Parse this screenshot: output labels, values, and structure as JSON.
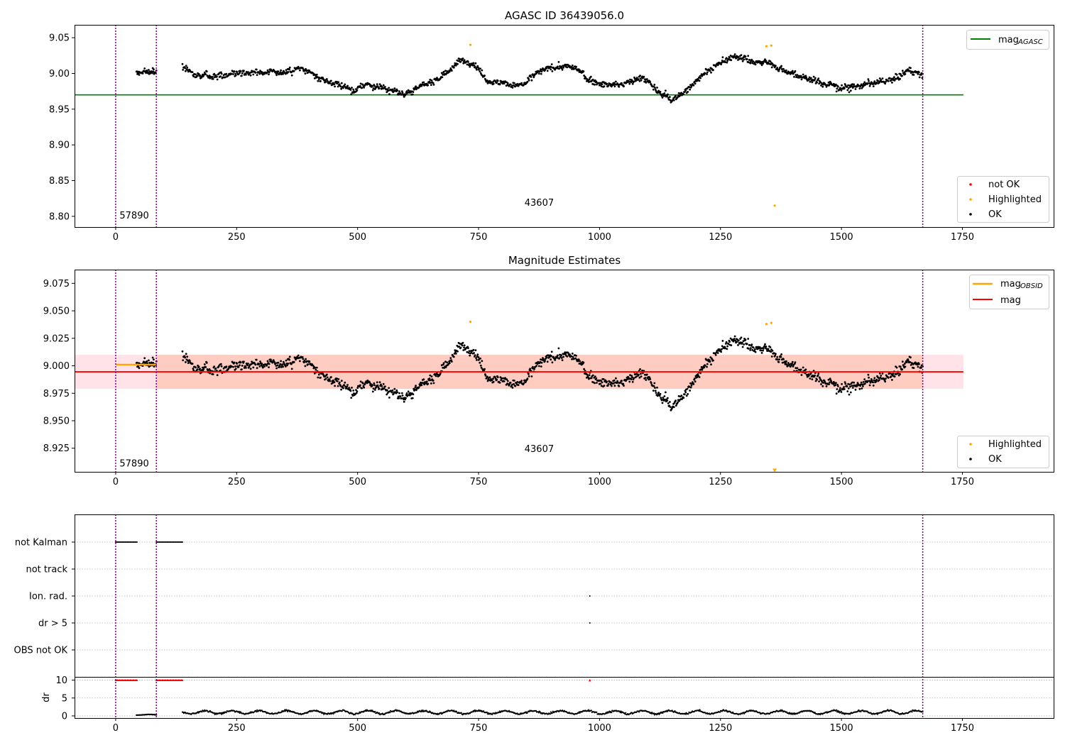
{
  "chart_data": [
    {
      "type": "scatter",
      "title": "AGASC ID 36439056.0",
      "xlim": [
        -85,
        1940
      ],
      "ylim": [
        8.785,
        9.068
      ],
      "x_ticks": [
        0,
        250,
        500,
        750,
        1000,
        1250,
        1500,
        1750
      ],
      "y_ticks": [
        8.8,
        8.85,
        8.9,
        8.95,
        9.0,
        9.05
      ],
      "y_tick_labels": [
        "8.80",
        "8.85",
        "8.90",
        "8.95",
        "9.00",
        "9.05"
      ],
      "obs_boundaries": [
        0,
        84,
        1668
      ],
      "obs_labels": [
        {
          "x": 8,
          "y": 8.797,
          "text": "57890"
        },
        {
          "x": 845,
          "y": 8.815,
          "text": "43607"
        }
      ],
      "reference_line": {
        "name": "mag",
        "subscript": "AGASC",
        "y": 8.97,
        "x": [
          -85,
          1752
        ],
        "color": "#008000"
      },
      "series": [
        {
          "name": "OK",
          "color": "#000000",
          "segments": [
            {
              "x0": 43,
              "x1": 84,
              "n": 45,
              "base": [
                [
                  43,
                  9.001
                ],
                [
                  84,
                  9.003
                ]
              ],
              "noise": 0.006
            },
            {
              "x0": 138,
              "x1": 1668,
              "n": 1400,
              "base": [
                [
                  138,
                  9.013
                ],
                [
                  160,
                  9.0
                ],
                [
                  200,
                  8.995
                ],
                [
                  260,
                  9.002
                ],
                [
                  300,
                  9.003
                ],
                [
                  350,
                  9.002
                ],
                [
                  380,
                  9.008
                ],
                [
                  420,
                  8.992
                ],
                [
                  460,
                  8.985
                ],
                [
                  490,
                  8.975
                ],
                [
                  520,
                  8.985
                ],
                [
                  560,
                  8.978
                ],
                [
                  600,
                  8.972
                ],
                [
                  640,
                  8.984
                ],
                [
                  680,
                  8.998
                ],
                [
                  710,
                  9.017
                ],
                [
                  740,
                  9.015
                ],
                [
                  770,
                  8.99
                ],
                [
                  800,
                  8.987
                ],
                [
                  840,
                  8.982
                ],
                [
                  870,
                  9.0
                ],
                [
                  910,
                  9.01
                ],
                [
                  950,
                  9.008
                ],
                [
                  980,
                  8.99
                ],
                [
                  1010,
                  8.985
                ],
                [
                  1050,
                  8.985
                ],
                [
                  1090,
                  8.995
                ],
                [
                  1120,
                  8.975
                ],
                [
                  1150,
                  8.963
                ],
                [
                  1180,
                  8.975
                ],
                [
                  1210,
                  8.998
                ],
                [
                  1250,
                  9.015
                ],
                [
                  1290,
                  9.025
                ],
                [
                  1320,
                  9.015
                ],
                [
                  1350,
                  9.015
                ],
                [
                  1380,
                  9.005
                ],
                [
                  1420,
                  8.995
                ],
                [
                  1470,
                  8.985
                ],
                [
                  1500,
                  8.98
                ],
                [
                  1560,
                  8.985
                ],
                [
                  1610,
                  8.992
                ],
                [
                  1640,
                  9.005
                ],
                [
                  1668,
                  8.998
                ]
              ],
              "noise": 0.007
            }
          ]
        },
        {
          "name": "Highlighted",
          "color": "#ffa500",
          "points": [
            [
              733,
              9.04
            ],
            [
              1345,
              9.038
            ],
            [
              1355,
              9.039
            ],
            [
              1362,
              8.815
            ]
          ]
        },
        {
          "name": "not OK",
          "color": "#ff0000",
          "points": []
        }
      ],
      "legend_lines": [
        {
          "name": "mag",
          "subscript": "AGASC",
          "color": "#008000"
        }
      ],
      "legend_markers": [
        {
          "name": "not OK",
          "color": "#ff0000"
        },
        {
          "name": "Highlighted",
          "color": "#ffa500"
        },
        {
          "name": "OK",
          "color": "#000000"
        }
      ]
    },
    {
      "type": "scatter",
      "title": "Magnitude Estimates",
      "xlim": [
        -85,
        1940
      ],
      "ylim": [
        8.9035,
        9.0875
      ],
      "x_ticks": [
        0,
        250,
        500,
        750,
        1000,
        1250,
        1500,
        1750
      ],
      "y_ticks": [
        8.925,
        8.95,
        8.975,
        9.0,
        9.025,
        9.05,
        9.075
      ],
      "y_tick_labels": [
        "8.925",
        "8.950",
        "8.975",
        "9.000",
        "9.025",
        "9.050",
        "9.075"
      ],
      "obs_boundaries": [
        0,
        84,
        1668
      ],
      "obs_labels": [
        {
          "x": 8,
          "y": 8.9085,
          "text": "57890"
        },
        {
          "x": 845,
          "y": 8.9215,
          "text": "43607"
        }
      ],
      "bands": [
        {
          "y0": 8.979,
          "y1": 9.01,
          "x": [
            -85,
            1752
          ],
          "color": "#ffc0cb",
          "opacity": 0.45
        },
        {
          "y0": 8.979,
          "y1": 9.01,
          "x": [
            84,
            1668
          ],
          "color": "#ffa07a",
          "opacity": 0.35
        }
      ],
      "mag_line": {
        "name": "mag",
        "y": 8.9945,
        "x": [
          -85,
          1752
        ],
        "color": "#ff0000"
      },
      "mag_obsid": [
        {
          "x": [
            0,
            84
          ],
          "y": 9.001
        },
        {
          "x": [
            84,
            1668
          ],
          "y": 8.995
        }
      ],
      "down_marker": {
        "x": 1362,
        "y": 8.9045,
        "color": "#ffa500"
      },
      "legend_lines": [
        {
          "name": "mag",
          "subscript": "OBSID",
          "color": "#ffa500"
        },
        {
          "name": "mag",
          "subscript": "",
          "color": "#ff0000"
        }
      ],
      "legend_markers": [
        {
          "name": "Highlighted",
          "color": "#ffa500"
        },
        {
          "name": "OK",
          "color": "#000000"
        }
      ]
    },
    {
      "type": "scatter",
      "title": "",
      "xlim": [
        -85,
        1940
      ],
      "x_ticks": [
        0,
        250,
        500,
        750,
        1000,
        1250,
        1500,
        1750
      ],
      "flag_rows": [
        "not Kalman",
        "not track",
        "Ion. rad.",
        "dr > 5",
        "OBS not OK"
      ],
      "flag_points": [
        {
          "row": "not Kalman",
          "ranges": [
            [
              0,
              45
            ],
            [
              84,
              138
            ]
          ]
        },
        {
          "row": "Ion. rad.",
          "points": [
            980
          ]
        },
        {
          "row": "dr > 5",
          "points": [
            980
          ]
        }
      ],
      "dr": {
        "ylabel": "dr",
        "ylim": [
          -0.6,
          10.9
        ],
        "y_ticks": [
          0,
          5,
          10
        ],
        "y_tick_labels": [
          "0",
          "5",
          "10"
        ],
        "clipped_ranges": [
          [
            0,
            45
          ],
          [
            84,
            138
          ]
        ],
        "clipped_points": [
          980
        ],
        "clipped_value": 10,
        "clipped_color": "#ff0000",
        "segments": [
          {
            "x0": 43,
            "x1": 84,
            "n": 30,
            "base": [
              [
                43,
                0.3
              ],
              [
                84,
                0.3
              ]
            ],
            "amp": 0.2
          },
          {
            "x0": 138,
            "x1": 1668,
            "n": 1100,
            "base": [
              [
                138,
                1.0
              ],
              [
                1668,
                1.0
              ]
            ],
            "amp": 0.9
          }
        ]
      },
      "obs_boundaries": [
        0,
        84,
        1668
      ]
    }
  ]
}
